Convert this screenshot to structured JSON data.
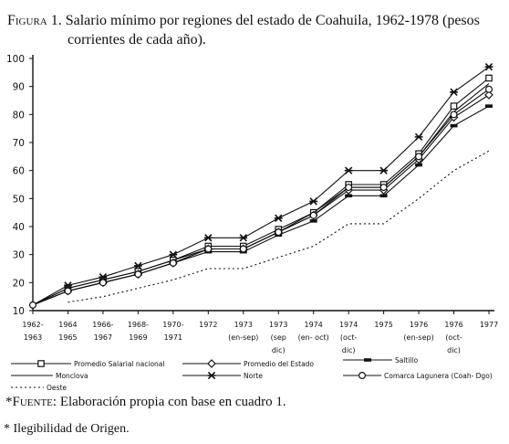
{
  "figure": {
    "label": "Figura 1.",
    "title_line1": "Salario mínimo por regiones del estado de Coahuila, 1962-1978 (pesos",
    "title_line2": "corrientes de cada año).",
    "source_label": "*Fuente:",
    "source_text": "Elaboración propia con base en cuadro 1.",
    "note": "* Ilegibilidad de Origen."
  },
  "chart_data": {
    "type": "line",
    "title": "Salario mínimo por regiones del estado de Coahuila, 1962-1978 (pesos corrientes de cada año).",
    "xlabel": "",
    "ylabel": "",
    "ylim": [
      10,
      100
    ],
    "yticks": [
      10,
      20,
      30,
      40,
      50,
      60,
      70,
      80,
      90,
      100
    ],
    "grid": false,
    "legend_position": "bottom",
    "categories": [
      [
        "1962-",
        "1963"
      ],
      [
        "1964",
        "1965"
      ],
      [
        "1966-",
        "1967"
      ],
      [
        "1968-",
        "1969"
      ],
      [
        "1970-",
        "1971"
      ],
      [
        "1972"
      ],
      [
        "1973",
        "(en-sep)"
      ],
      [
        "1973",
        "(sep",
        "dic)"
      ],
      [
        "1974",
        "(en- oct)"
      ],
      [
        "1974",
        "(oct-",
        "dic)"
      ],
      [
        "1975"
      ],
      [
        "1976",
        "(en-sep)"
      ],
      [
        "1976",
        "(oct-",
        "dic)"
      ],
      [
        "1977"
      ]
    ],
    "series": [
      {
        "name": "Promedio Salarial nacional",
        "marker": "square",
        "dash": "solid",
        "values": [
          12,
          18,
          21,
          24,
          28,
          33,
          33,
          39,
          45,
          55,
          55,
          66,
          83,
          93
        ]
      },
      {
        "name": "Promedio del Estado",
        "marker": "diamond",
        "dash": "solid",
        "values": [
          12,
          17,
          20,
          23,
          27,
          32,
          32,
          38,
          44,
          53,
          53,
          64,
          79,
          87
        ]
      },
      {
        "name": "Saltillo",
        "marker": "bar",
        "dash": "solid",
        "values": [
          12,
          17,
          20,
          23,
          27,
          31,
          31,
          37,
          42,
          51,
          51,
          62,
          76,
          83
        ]
      },
      {
        "name": "Monclova",
        "marker": "none",
        "dash": "solid",
        "values": [
          12,
          18,
          21,
          24,
          28,
          32,
          32,
          38,
          45,
          54,
          54,
          65,
          81,
          91
        ]
      },
      {
        "name": "Norte",
        "marker": "star",
        "dash": "solid",
        "values": [
          12,
          19,
          22,
          26,
          30,
          36,
          36,
          43,
          49,
          60,
          60,
          72,
          88,
          97
        ]
      },
      {
        "name": "Comarca Lagunera (Coah- Dgo)",
        "marker": "circle",
        "dash": "solid",
        "values": [
          12,
          17,
          20,
          23,
          27,
          32,
          32,
          38,
          44,
          54,
          54,
          65,
          80,
          89
        ]
      },
      {
        "name": "Oeste",
        "marker": "none",
        "dash": "dashed",
        "values": [
          null,
          13,
          15,
          18,
          21,
          25,
          25,
          29,
          33,
          41,
          41,
          50,
          60,
          67
        ]
      }
    ]
  }
}
